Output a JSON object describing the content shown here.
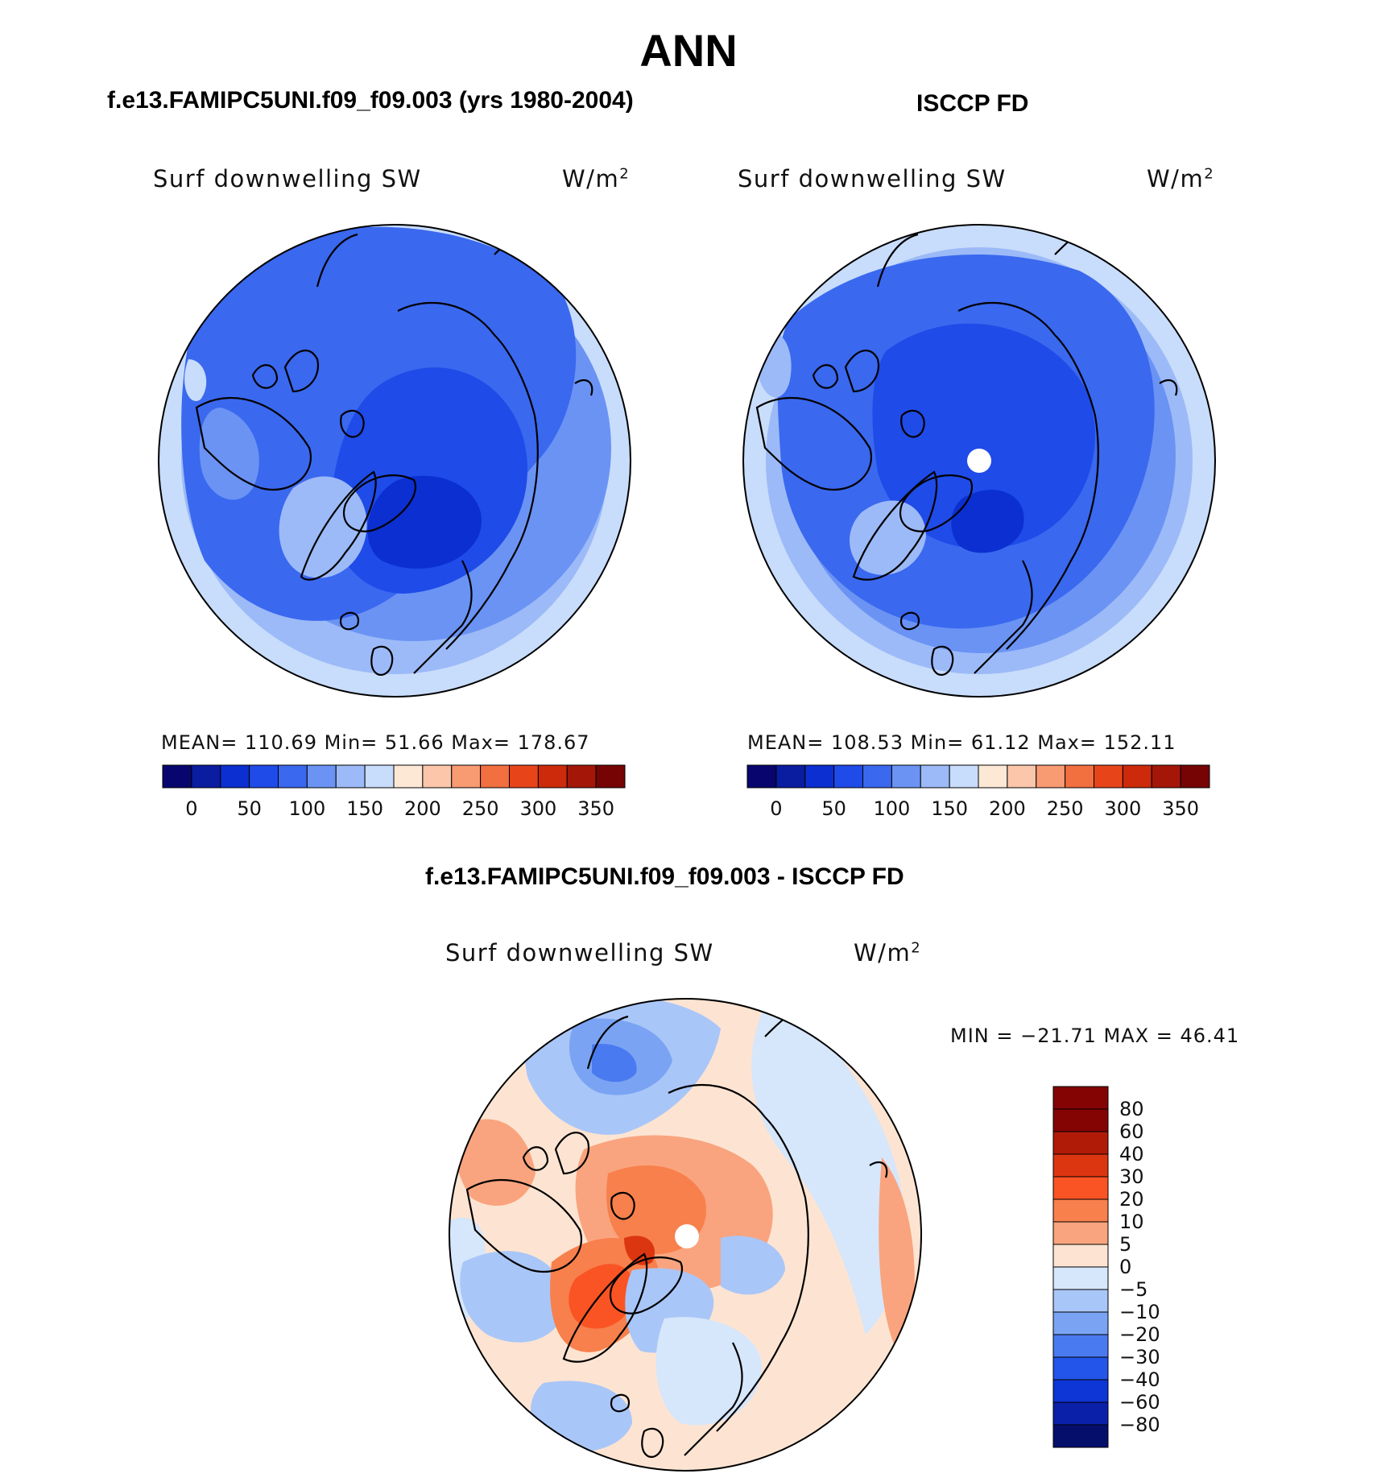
{
  "title": "ANN",
  "panels": [
    {
      "id": "model",
      "title": "f.e13.FAMIPC5UNI.f09_f09.003 (yrs 1980-2004)",
      "variable": "Surf downwelling SW",
      "units_base": "W/m",
      "units_exp": "2",
      "stats_text": "MEAN= 110.69   Min=   51.66   Max= 178.67",
      "stats": {
        "mean": 110.69,
        "min": 51.66,
        "max": 178.67
      }
    },
    {
      "id": "obs",
      "title": "ISCCP FD",
      "variable": "Surf downwelling SW",
      "units_base": "W/m",
      "units_exp": "2",
      "stats_text": "MEAN= 108.53   Min=   61.12   Max= 152.11",
      "stats": {
        "mean": 108.53,
        "min": 61.12,
        "max": 152.11
      }
    },
    {
      "id": "diff",
      "title": "f.e13.FAMIPC5UNI.f09_f09.003 - ISCCP FD",
      "variable": "Surf downwelling SW",
      "units_base": "W/m",
      "units_exp": "2",
      "stats_text": "MIN  =  −21.71  MAX  =    46.41",
      "stats": {
        "min": -21.71,
        "max": 46.41
      }
    }
  ],
  "colorbar_abs": {
    "labels": [
      "0",
      "50",
      "100",
      "150",
      "200",
      "250",
      "300",
      "350"
    ],
    "colors": [
      "#08066e",
      "#0a1ca0",
      "#0b2fd0",
      "#1f4be8",
      "#3a68ef",
      "#6a93f4",
      "#9cbaf8",
      "#c8dcfb",
      "#fde8d6",
      "#fbc6aa",
      "#f89a72",
      "#f26f40",
      "#e8441a",
      "#cc2a0a",
      "#a41708",
      "#760404"
    ]
  },
  "colorbar_diff": {
    "labels": [
      "80",
      "60",
      "40",
      "30",
      "20",
      "10",
      "5",
      "0",
      "−5",
      "−10",
      "−20",
      "−30",
      "−40",
      "−60",
      "−80"
    ],
    "colors": [
      "#840404",
      "#b01b08",
      "#dc3610",
      "#fa5424",
      "#f8804c",
      "#f9a47e",
      "#fde4d2",
      "#d6e6fb",
      "#a9c6f8",
      "#7aa4f3",
      "#4a7af0",
      "#2455ea",
      "#0e36d6",
      "#0a20a8",
      "#060e6c"
    ]
  },
  "chart_data": {
    "type": "heatmap",
    "projection": "north polar stereographic",
    "maps": [
      {
        "name": "f.e13.FAMIPC5UNI.f09_f09.003 (yrs 1980-2004)",
        "field": "Surf downwelling SW",
        "units": "W/m2",
        "mean": 110.69,
        "min": 51.66,
        "max": 178.67,
        "contour_levels": [
          0,
          25,
          50,
          75,
          100,
          125,
          150,
          175,
          200,
          225,
          250,
          275,
          300,
          325,
          350
        ]
      },
      {
        "name": "ISCCP FD",
        "field": "Surf downwelling SW",
        "units": "W/m2",
        "mean": 108.53,
        "min": 61.12,
        "max": 152.11,
        "contour_levels": [
          0,
          25,
          50,
          75,
          100,
          125,
          150,
          175,
          200,
          225,
          250,
          275,
          300,
          325,
          350
        ]
      },
      {
        "name": "f.e13.FAMIPC5UNI.f09_f09.003 - ISCCP FD",
        "field": "Surf downwelling SW",
        "units": "W/m2",
        "min": -21.71,
        "max": 46.41,
        "contour_levels": [
          -80,
          -60,
          -40,
          -30,
          -20,
          -10,
          -5,
          0,
          5,
          10,
          20,
          30,
          40,
          60,
          80
        ]
      }
    ]
  }
}
